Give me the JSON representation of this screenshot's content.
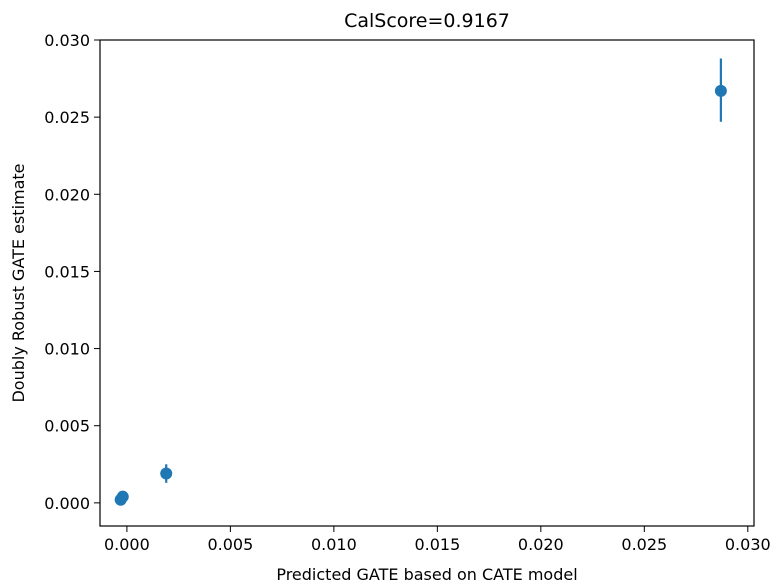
{
  "chart_data": {
    "type": "scatter",
    "title": "CalScore=0.9167",
    "xlabel": "Predicted GATE based on CATE model",
    "ylabel": "Doubly Robust GATE estimate",
    "xlim": [
      -0.0013,
      0.0303
    ],
    "ylim": [
      -0.0015,
      0.03
    ],
    "xticks": [
      "0.000",
      "0.005",
      "0.010",
      "0.015",
      "0.020",
      "0.025",
      "0.030"
    ],
    "yticks": [
      "0.000",
      "0.005",
      "0.010",
      "0.015",
      "0.020",
      "0.025",
      "0.030"
    ],
    "grid": false,
    "color": "#1f77b4",
    "points": [
      {
        "x": -0.0003,
        "y": 0.0002,
        "ylow": 0.0001,
        "yhigh": 0.0003
      },
      {
        "x": -0.0002,
        "y": 0.0004,
        "ylow": 0.0003,
        "yhigh": 0.0005
      },
      {
        "x": 0.0019,
        "y": 0.0019,
        "ylow": 0.0013,
        "yhigh": 0.0025
      },
      {
        "x": 0.0287,
        "y": 0.0267,
        "ylow": 0.0247,
        "yhigh": 0.0288
      }
    ]
  }
}
